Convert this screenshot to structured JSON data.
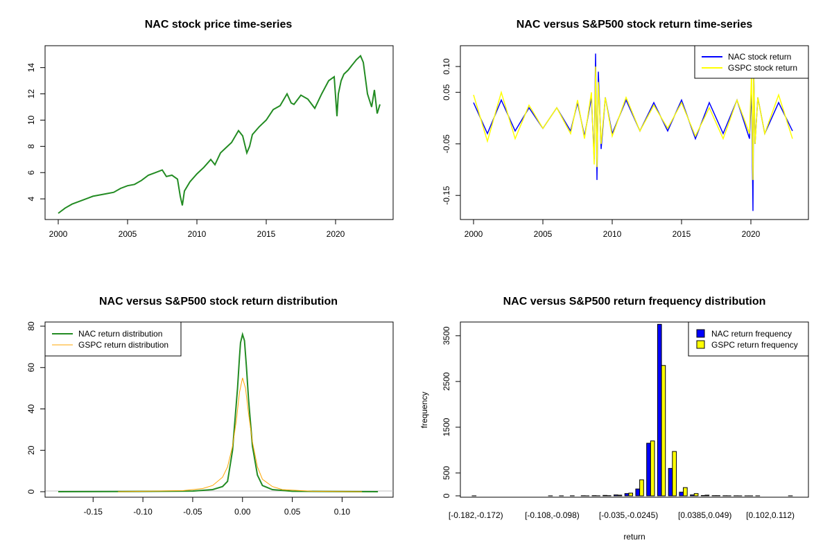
{
  "chart_data": [
    {
      "type": "line",
      "title": "NAC stock price time-series",
      "xlabel": "",
      "ylabel": "",
      "xlim": [
        2000,
        2023.2
      ],
      "ylim": [
        2.9,
        15.3
      ],
      "x_ticks": [
        "2000",
        "2005",
        "2010",
        "2015",
        "2020"
      ],
      "y_ticks": [
        "4",
        "6",
        "8",
        "10",
        "12",
        "14"
      ],
      "legend": "none",
      "grid": false,
      "color": "#228B22",
      "series": [
        {
          "x": [
            2000.0,
            2000.5,
            2001.0,
            2001.5,
            2002.0,
            2002.5,
            2003.0,
            2003.5,
            2004.0,
            2004.5,
            2005.0,
            2005.5,
            2006.0,
            2006.5,
            2007.0,
            2007.5,
            2007.8,
            2008.2,
            2008.6,
            2008.8,
            2008.95,
            2009.1,
            2009.5,
            2010.0,
            2010.5,
            2011.0,
            2011.3,
            2011.7,
            2012.0,
            2012.5,
            2013.0,
            2013.3,
            2013.6,
            2013.8,
            2014.0,
            2014.5,
            2015.0,
            2015.5,
            2016.0,
            2016.5,
            2016.8,
            2017.0,
            2017.5,
            2018.0,
            2018.5,
            2019.0,
            2019.5,
            2019.9,
            2020.1,
            2020.2,
            2020.4,
            2020.6,
            2020.9,
            2021.2,
            2021.5,
            2021.8,
            2022.0,
            2022.3,
            2022.6,
            2022.8,
            2023.0,
            2023.2
          ],
          "y": [
            2.9,
            3.3,
            3.6,
            3.8,
            4.0,
            4.2,
            4.3,
            4.4,
            4.5,
            4.8,
            5.0,
            5.1,
            5.4,
            5.8,
            6.0,
            6.2,
            5.7,
            5.8,
            5.5,
            4.2,
            3.5,
            4.6,
            5.3,
            5.9,
            6.4,
            7.0,
            6.6,
            7.5,
            7.8,
            8.3,
            9.2,
            8.8,
            7.5,
            8.0,
            8.9,
            9.5,
            10.0,
            10.8,
            11.1,
            12.0,
            11.3,
            11.2,
            11.9,
            11.6,
            10.9,
            12.0,
            13.0,
            13.3,
            10.3,
            12.0,
            13.0,
            13.5,
            13.8,
            14.2,
            14.6,
            14.9,
            14.4,
            12.0,
            11.0,
            12.3,
            10.5,
            11.2
          ]
        }
      ]
    },
    {
      "type": "line",
      "title": "NAC versus S&P500 stock return time-series",
      "xlabel": "",
      "ylabel": "",
      "xlim": [
        2000,
        2023.2
      ],
      "ylim": [
        -0.19,
        0.135
      ],
      "x_ticks": [
        "2000",
        "2005",
        "2010",
        "2015",
        "2020"
      ],
      "y_ticks": [
        "-0.15",
        "-0.05",
        "0.05",
        "0.10"
      ],
      "legend": "top-right",
      "grid": false,
      "series": [
        {
          "name": "NAC stock return",
          "color": "#0000FF",
          "x": [
            2000.0,
            2001.0,
            2002.0,
            2003.0,
            2004.0,
            2005.0,
            2006.0,
            2007.0,
            2007.5,
            2008.0,
            2008.5,
            2008.7,
            2008.8,
            2008.9,
            2009.0,
            2009.2,
            2009.5,
            2010.0,
            2011.0,
            2012.0,
            2013.0,
            2014.0,
            2015.0,
            2016.0,
            2017.0,
            2018.0,
            2019.0,
            2019.9,
            2020.05,
            2020.15,
            2020.2,
            2020.3,
            2020.5,
            2021.0,
            2022.0,
            2023.0
          ],
          "y": [
            0.03,
            -0.03,
            0.035,
            -0.025,
            0.02,
            -0.02,
            0.02,
            -0.025,
            0.03,
            -0.035,
            0.04,
            -0.08,
            0.125,
            -0.12,
            0.09,
            -0.06,
            0.04,
            -0.03,
            0.035,
            -0.025,
            0.03,
            -0.025,
            0.035,
            -0.04,
            0.03,
            -0.03,
            0.035,
            -0.04,
            0.06,
            -0.18,
            0.1,
            -0.05,
            0.04,
            -0.03,
            0.03,
            -0.025
          ]
        },
        {
          "name": "GSPC stock return",
          "color": "#FFFF00",
          "x": [
            2000.0,
            2001.0,
            2002.0,
            2003.0,
            2004.0,
            2005.0,
            2006.0,
            2007.0,
            2007.5,
            2008.0,
            2008.5,
            2008.7,
            2008.8,
            2008.9,
            2009.0,
            2009.2,
            2009.5,
            2010.0,
            2011.0,
            2012.0,
            2013.0,
            2014.0,
            2015.0,
            2016.0,
            2017.0,
            2018.0,
            2019.0,
            2019.9,
            2020.05,
            2020.15,
            2020.2,
            2020.3,
            2020.5,
            2021.0,
            2022.0,
            2023.0
          ],
          "y": [
            0.045,
            -0.045,
            0.05,
            -0.04,
            0.025,
            -0.02,
            0.02,
            -0.03,
            0.035,
            -0.04,
            0.05,
            -0.09,
            0.1,
            -0.095,
            0.07,
            -0.05,
            0.04,
            -0.035,
            0.04,
            -0.025,
            0.025,
            -0.02,
            0.03,
            -0.035,
            0.02,
            -0.04,
            0.035,
            -0.03,
            0.09,
            -0.12,
            0.09,
            -0.05,
            0.04,
            -0.03,
            0.045,
            -0.04
          ]
        }
      ]
    },
    {
      "type": "line",
      "title": "NAC versus S&P500 stock return distribution",
      "xlabel": "",
      "ylabel": "",
      "xlim": [
        -0.185,
        0.138
      ],
      "ylim": [
        -2,
        81
      ],
      "x_ticks": [
        "-0.15",
        "-0.10",
        "-0.05",
        "0.00",
        "0.05",
        "0.10"
      ],
      "y_ticks": [
        "0",
        "20",
        "40",
        "60",
        "80"
      ],
      "legend": "top-left",
      "grid": false,
      "series": [
        {
          "name": "NAC return distribution",
          "color": "#228B22",
          "x": [
            -0.185,
            -0.12,
            -0.05,
            -0.03,
            -0.02,
            -0.015,
            -0.01,
            -0.005,
            -0.003,
            -0.002,
            0.0,
            0.002,
            0.004,
            0.006,
            0.01,
            0.015,
            0.02,
            0.03,
            0.05,
            0.136
          ],
          "y": [
            0.0,
            0.1,
            0.3,
            1.0,
            2.5,
            5.0,
            20.0,
            50.0,
            65.0,
            72.0,
            76.0,
            73.0,
            60.0,
            45.0,
            22.0,
            8.0,
            3.0,
            1.0,
            0.2,
            0.0
          ]
        },
        {
          "name": "GSPC return distribution",
          "color": "#FFA500",
          "x": [
            -0.125,
            -0.06,
            -0.04,
            -0.03,
            -0.02,
            -0.015,
            -0.01,
            -0.006,
            -0.003,
            0.0,
            0.003,
            0.006,
            0.01,
            0.015,
            0.02,
            0.03,
            0.04,
            0.07,
            0.12
          ],
          "y": [
            0.0,
            0.5,
            1.5,
            3.0,
            7.0,
            12.0,
            22.0,
            35.0,
            48.0,
            55.0,
            50.0,
            38.0,
            24.0,
            12.0,
            6.0,
            2.5,
            1.0,
            0.2,
            0.0
          ]
        }
      ]
    },
    {
      "type": "bar",
      "title": "NAC versus S&P500 return frequency distribution",
      "xlabel": "return",
      "ylabel": "frequency",
      "ylim": [
        0,
        3800
      ],
      "y_ticks": [
        "0",
        "500",
        "1500",
        "2500",
        "3500"
      ],
      "x_tick_labels": [
        "[-0.182,-0.172)",
        "[-0.108,-0.098)",
        "[-0.035,-0.0245)",
        "[0.0385,0.049)",
        "[0.102,0.112)"
      ],
      "x_tick_positions": [
        0,
        7,
        14,
        21,
        27
      ],
      "bin_count": 30,
      "legend": "top-right",
      "grid": false,
      "series": [
        {
          "name": "NAC return frequency",
          "color": "#0000FF",
          "values": [
            1,
            0,
            0,
            0,
            0,
            0,
            0,
            1,
            1,
            2,
            3,
            5,
            10,
            20,
            50,
            150,
            1150,
            3750,
            600,
            80,
            20,
            8,
            5,
            3,
            2,
            1,
            1,
            0,
            0,
            1
          ]
        },
        {
          "name": "GSPC return frequency",
          "color": "#FFFF00",
          "values": [
            0,
            0,
            0,
            0,
            0,
            0,
            0,
            0,
            0,
            0,
            1,
            2,
            5,
            15,
            60,
            350,
            1200,
            2850,
            970,
            180,
            50,
            15,
            5,
            2,
            1,
            1,
            0,
            0,
            0,
            0
          ]
        }
      ]
    }
  ]
}
